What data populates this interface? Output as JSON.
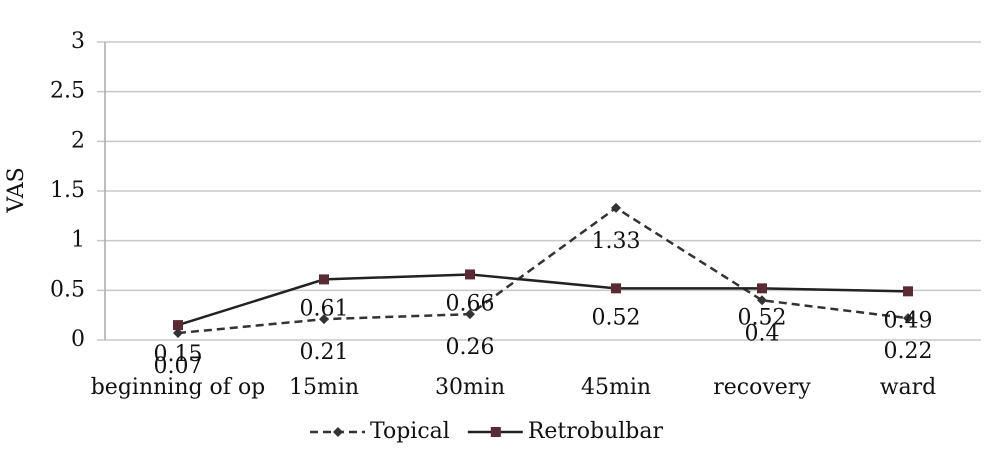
{
  "chart_data": {
    "type": "line",
    "y_label": "VAS",
    "categories": [
      "beginning of op",
      "15min",
      "30min",
      "45min",
      "recovery",
      "ward"
    ],
    "series": [
      {
        "name": "Topical",
        "color": "#333333",
        "line_style": "dashed",
        "marker": "diamond",
        "values": [
          0.07,
          0.21,
          0.26,
          1.33,
          0.4,
          0.22
        ]
      },
      {
        "name": "Retrobulbar",
        "color": "#222222",
        "line_style": "solid",
        "marker": "square",
        "values": [
          0.15,
          0.61,
          0.66,
          0.52,
          0.52,
          0.49
        ]
      }
    ],
    "ylim": [
      0,
      3
    ],
    "yticks": [
      0,
      0.5,
      1,
      1.5,
      2,
      2.5,
      3
    ],
    "grid": true,
    "legend": "bottom"
  }
}
